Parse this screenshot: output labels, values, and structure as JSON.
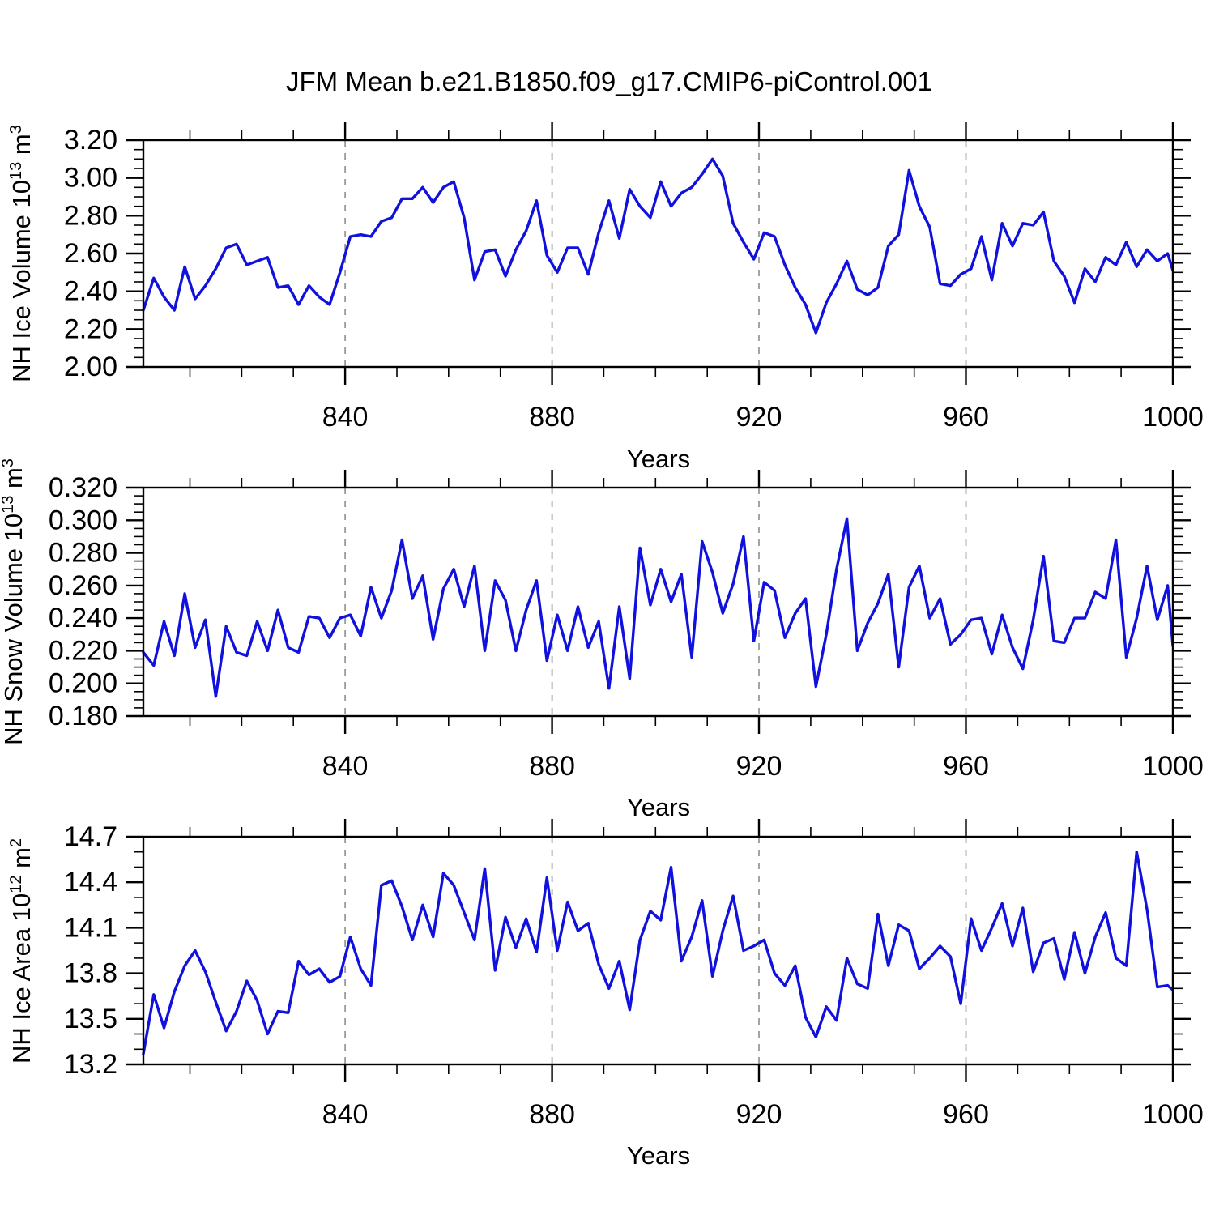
{
  "title": "JFM Mean b.e21.B1850.f09_g17.CMIP6-piControl.001",
  "chart_data": {
    "type": "line",
    "legend": "none",
    "grid": "vertical-dashed-at-x-majors",
    "style": {
      "line_color": "#1111dd",
      "grid_color": "#9a9a9a",
      "frame_color": "#000000",
      "background": "#ffffff"
    },
    "years": [
      801,
      803,
      805,
      807,
      809,
      811,
      813,
      815,
      817,
      819,
      821,
      823,
      825,
      827,
      829,
      831,
      833,
      835,
      837,
      839,
      841,
      843,
      845,
      847,
      849,
      851,
      853,
      855,
      857,
      859,
      861,
      863,
      865,
      867,
      869,
      871,
      873,
      875,
      877,
      879,
      881,
      883,
      885,
      887,
      889,
      891,
      893,
      895,
      897,
      899,
      901,
      903,
      905,
      907,
      909,
      911,
      913,
      915,
      917,
      919,
      921,
      923,
      925,
      927,
      929,
      931,
      933,
      935,
      937,
      939,
      941,
      943,
      945,
      947,
      949,
      951,
      953,
      955,
      957,
      959,
      961,
      963,
      965,
      967,
      969,
      971,
      973,
      975,
      977,
      979,
      981,
      983,
      985,
      987,
      989,
      991,
      993,
      995,
      997,
      999,
      1000
    ],
    "panels": [
      {
        "id": "nh-ice-volume",
        "ylabel": {
          "p1": "NH Ice Volume 10",
          "sup1": "13",
          "p2": " m",
          "sup2": "3"
        },
        "xlabel": "Years",
        "ylim": [
          2.0,
          3.2
        ],
        "ytick_step": 0.2,
        "yminor_step": 0.05,
        "ytick_labels": [
          "3.20",
          "3.00",
          "2.80",
          "2.60",
          "2.40",
          "2.20",
          "2.00"
        ],
        "xlim": [
          801,
          1000
        ],
        "xticks": [
          840,
          880,
          920,
          960,
          1000
        ],
        "xminor_step": 10,
        "grid_x": [
          840,
          880,
          920,
          960
        ],
        "values": [
          2.3,
          2.47,
          2.37,
          2.3,
          2.53,
          2.36,
          2.43,
          2.52,
          2.63,
          2.65,
          2.54,
          2.56,
          2.58,
          2.42,
          2.43,
          2.33,
          2.43,
          2.37,
          2.33,
          2.5,
          2.69,
          2.7,
          2.69,
          2.77,
          2.79,
          2.89,
          2.89,
          2.95,
          2.87,
          2.95,
          2.98,
          2.79,
          2.46,
          2.61,
          2.62,
          2.48,
          2.62,
          2.72,
          2.88,
          2.59,
          2.5,
          2.63,
          2.63,
          2.49,
          2.71,
          2.88,
          2.68,
          2.94,
          2.85,
          2.79,
          2.98,
          2.85,
          2.92,
          2.95,
          3.02,
          3.1,
          3.01,
          2.76,
          2.66,
          2.57,
          2.71,
          2.69,
          2.54,
          2.42,
          2.33,
          2.18,
          2.34,
          2.44,
          2.56,
          2.41,
          2.38,
          2.42,
          2.64,
          2.7,
          3.04,
          2.85,
          2.74,
          2.44,
          2.43,
          2.49,
          2.52,
          2.69,
          2.46,
          2.76,
          2.64,
          2.76,
          2.75,
          2.82,
          2.56,
          2.48,
          2.34,
          2.52,
          2.45,
          2.58,
          2.54,
          2.66,
          2.53,
          2.62,
          2.56,
          2.6,
          2.51
        ]
      },
      {
        "id": "nh-snow-volume",
        "ylabel": {
          "p1": "NH Snow Volume 10",
          "sup1": "13",
          "p2": " m",
          "sup2": "3"
        },
        "xlabel": "Years",
        "ylim": [
          0.18,
          0.32
        ],
        "ytick_step": 0.02,
        "yminor_step": 0.005,
        "ytick_labels": [
          "0.320",
          "0.300",
          "0.280",
          "0.260",
          "0.240",
          "0.220",
          "0.200",
          "0.180"
        ],
        "xlim": [
          801,
          1000
        ],
        "xticks": [
          840,
          880,
          920,
          960,
          1000
        ],
        "xminor_step": 10,
        "grid_x": [
          840,
          880,
          920,
          960
        ],
        "values": [
          0.219,
          0.211,
          0.238,
          0.217,
          0.255,
          0.222,
          0.239,
          0.192,
          0.235,
          0.219,
          0.217,
          0.238,
          0.22,
          0.245,
          0.222,
          0.219,
          0.241,
          0.24,
          0.228,
          0.24,
          0.242,
          0.229,
          0.259,
          0.24,
          0.257,
          0.288,
          0.252,
          0.266,
          0.227,
          0.258,
          0.27,
          0.247,
          0.272,
          0.22,
          0.263,
          0.251,
          0.22,
          0.245,
          0.263,
          0.214,
          0.242,
          0.22,
          0.247,
          0.222,
          0.238,
          0.197,
          0.247,
          0.203,
          0.283,
          0.248,
          0.27,
          0.25,
          0.267,
          0.216,
          0.287,
          0.268,
          0.243,
          0.261,
          0.29,
          0.226,
          0.262,
          0.257,
          0.228,
          0.243,
          0.252,
          0.198,
          0.23,
          0.27,
          0.301,
          0.22,
          0.237,
          0.249,
          0.267,
          0.21,
          0.259,
          0.272,
          0.24,
          0.252,
          0.224,
          0.23,
          0.239,
          0.24,
          0.218,
          0.242,
          0.222,
          0.209,
          0.239,
          0.278,
          0.226,
          0.225,
          0.24,
          0.24,
          0.256,
          0.252,
          0.288,
          0.216,
          0.24,
          0.272,
          0.239,
          0.26,
          0.223
        ]
      },
      {
        "id": "nh-ice-area",
        "ylabel": {
          "p1": "NH Ice Area 10",
          "sup1": "12",
          "p2": " m",
          "sup2": "2"
        },
        "xlabel": "Years",
        "ylim": [
          13.2,
          14.7
        ],
        "ytick_step": 0.3,
        "yminor_step": 0.1,
        "ytick_labels": [
          "14.7",
          "14.4",
          "14.1",
          "13.8",
          "13.5",
          "13.2"
        ],
        "xlim": [
          801,
          1000
        ],
        "xticks": [
          840,
          880,
          920,
          960,
          1000
        ],
        "xminor_step": 10,
        "grid_x": [
          840,
          880,
          920,
          960
        ],
        "values": [
          13.27,
          13.66,
          13.44,
          13.68,
          13.85,
          13.95,
          13.81,
          13.61,
          13.42,
          13.55,
          13.75,
          13.62,
          13.4,
          13.55,
          13.54,
          13.88,
          13.79,
          13.83,
          13.74,
          13.78,
          14.04,
          13.83,
          13.72,
          14.38,
          14.41,
          14.24,
          14.02,
          14.25,
          14.04,
          14.46,
          14.38,
          14.2,
          14.02,
          14.49,
          13.82,
          14.17,
          13.97,
          14.16,
          13.94,
          14.43,
          13.95,
          14.27,
          14.08,
          14.13,
          13.86,
          13.7,
          13.88,
          13.56,
          14.02,
          14.21,
          14.15,
          14.5,
          13.88,
          14.04,
          14.28,
          13.78,
          14.08,
          14.31,
          13.95,
          13.98,
          14.02,
          13.8,
          13.72,
          13.85,
          13.51,
          13.38,
          13.58,
          13.49,
          13.9,
          13.73,
          13.7,
          14.19,
          13.85,
          14.12,
          14.08,
          13.83,
          13.9,
          13.98,
          13.91,
          13.6,
          14.16,
          13.95,
          14.1,
          14.26,
          13.98,
          14.23,
          13.81,
          14.0,
          14.03,
          13.76,
          14.07,
          13.8,
          14.04,
          14.2,
          13.9,
          13.85,
          14.6,
          14.22,
          13.71,
          13.72,
          13.69
        ]
      }
    ]
  }
}
